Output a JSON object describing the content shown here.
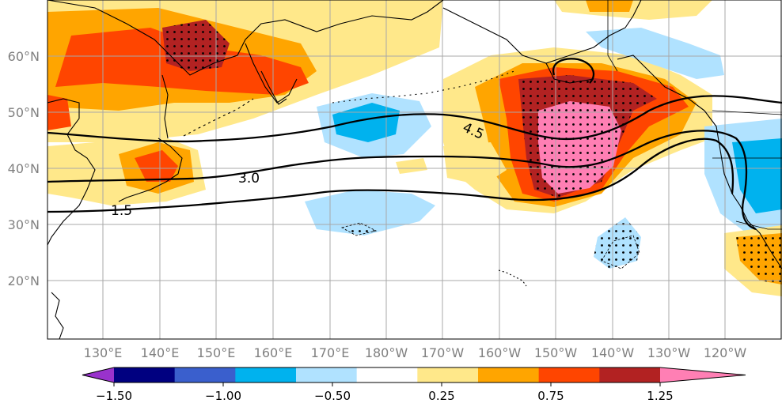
{
  "map": {
    "lat_labels": [
      "60°N",
      "50°N",
      "40°N",
      "30°N",
      "20°N"
    ],
    "lon_labels": [
      "130°E",
      "140°E",
      "150°E",
      "160°E",
      "170°E",
      "180°W",
      "170°W",
      "160°W",
      "150°W",
      "140°W",
      "130°W",
      "120°W"
    ],
    "contour_labels": [
      "4.5",
      "3.0",
      "1.5"
    ],
    "colors": {
      "ocean": "#ffffff",
      "coast": "#000000",
      "grid": "#a8a8a8",
      "label": "#808080"
    }
  },
  "colorbar": {
    "tick_labels": [
      "−1.50",
      "−1.00",
      "−0.50",
      "0.25",
      "0.75",
      "1.25"
    ],
    "bins": [
      "#9932cc",
      "#000080",
      "#3a5fcd",
      "#00b2ee",
      "#b0e2ff",
      "#ffffff",
      "#ffe88a",
      "#ffa500",
      "#ff4500",
      "#b22222",
      "#ff7fb4"
    ]
  }
}
